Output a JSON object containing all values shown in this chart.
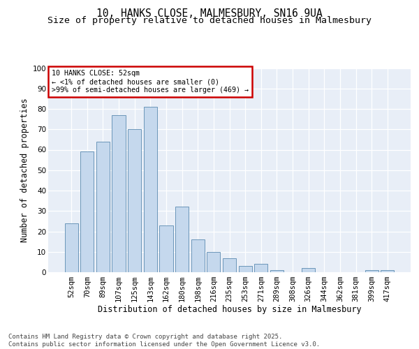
{
  "title1": "10, HANKS CLOSE, MALMESBURY, SN16 9UA",
  "title2": "Size of property relative to detached houses in Malmesbury",
  "xlabel": "Distribution of detached houses by size in Malmesbury",
  "ylabel": "Number of detached properties",
  "categories": [
    "52sqm",
    "70sqm",
    "89sqm",
    "107sqm",
    "125sqm",
    "143sqm",
    "162sqm",
    "180sqm",
    "198sqm",
    "216sqm",
    "235sqm",
    "253sqm",
    "271sqm",
    "289sqm",
    "308sqm",
    "326sqm",
    "344sqm",
    "362sqm",
    "381sqm",
    "399sqm",
    "417sqm"
  ],
  "values": [
    24,
    59,
    64,
    77,
    70,
    81,
    23,
    32,
    16,
    10,
    7,
    3,
    4,
    1,
    0,
    2,
    0,
    0,
    0,
    1,
    1
  ],
  "bar_color": "#c5d8ed",
  "bar_edge_color": "#5a8ab0",
  "annotation_text": "10 HANKS CLOSE: 52sqm\n← <1% of detached houses are smaller (0)\n>99% of semi-detached houses are larger (469) →",
  "annotation_box_color": "#ffffff",
  "annotation_box_edge_color": "#cc0000",
  "ylim": [
    0,
    100
  ],
  "yticks": [
    0,
    10,
    20,
    30,
    40,
    50,
    60,
    70,
    80,
    90,
    100
  ],
  "background_color": "#e8eef7",
  "footer_line1": "Contains HM Land Registry data © Crown copyright and database right 2025.",
  "footer_line2": "Contains public sector information licensed under the Open Government Licence v3.0.",
  "title1_fontsize": 10.5,
  "title2_fontsize": 9.5,
  "xlabel_fontsize": 8.5,
  "ylabel_fontsize": 8.5,
  "tick_fontsize": 7.5,
  "footer_fontsize": 6.5
}
